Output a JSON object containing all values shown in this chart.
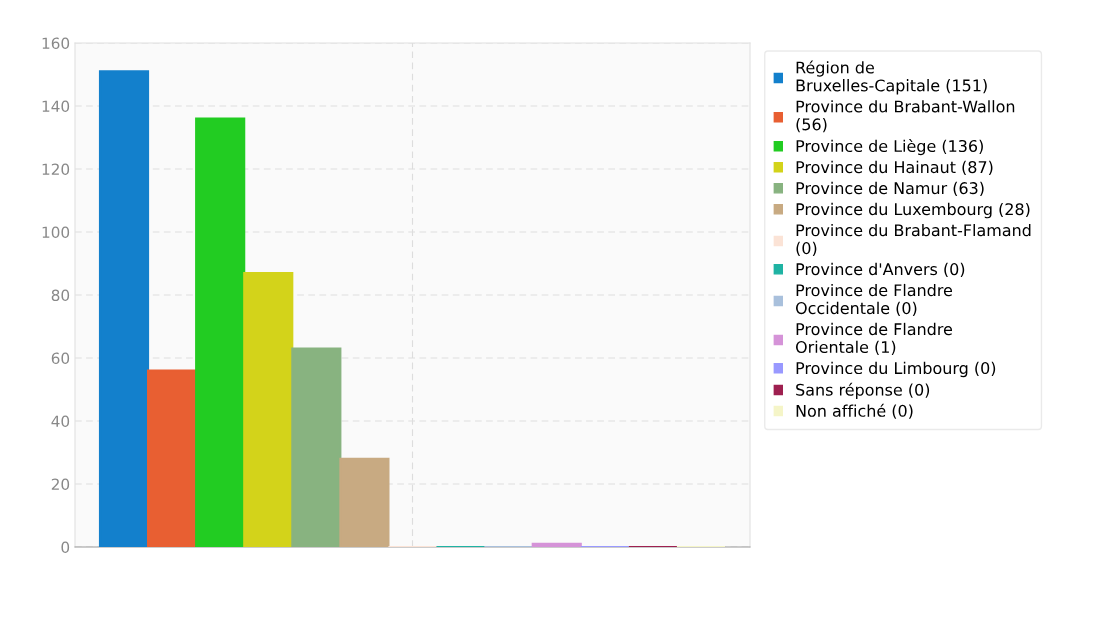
{
  "chart_data": {
    "type": "bar",
    "categories": [
      null
    ],
    "series": [
      {
        "name": "Région de Bruxelles-Capitale (151)",
        "color": "#1380cc",
        "values": [
          151
        ]
      },
      {
        "name": "Province du Brabant-Wallon (56)",
        "color": "#e85f32",
        "values": [
          56
        ]
      },
      {
        "name": "Province de Liège (136)",
        "color": "#22cc22",
        "values": [
          136
        ]
      },
      {
        "name": "Province du Hainaut (87)",
        "color": "#d3d31a",
        "values": [
          87
        ]
      },
      {
        "name": "Province de Namur (63)",
        "color": "#88b380",
        "values": [
          63
        ]
      },
      {
        "name": "Province du Luxembourg (28)",
        "color": "#c8aa82",
        "values": [
          28
        ]
      },
      {
        "name": "Province du Brabant-Flamand (0)",
        "color": "#fbe3d6",
        "values": [
          0
        ]
      },
      {
        "name": "Province d'Anvers (0)",
        "color": "#1fb3a3",
        "values": [
          0
        ]
      },
      {
        "name": "Province de Flandre Occidentale (0)",
        "color": "#a9c0dc",
        "values": [
          0
        ]
      },
      {
        "name": "Province de Flandre Orientale (1)",
        "color": "#d593d8",
        "values": [
          1
        ]
      },
      {
        "name": "Province du Limbourg (0)",
        "color": "#9999ff",
        "values": [
          0
        ]
      },
      {
        "name": "Sans réponse (0)",
        "color": "#9e2050",
        "values": [
          0
        ]
      },
      {
        "name": "Non affiché (0)",
        "color": "#f5f5c8",
        "values": [
          0
        ]
      }
    ],
    "ylim": [
      0,
      160
    ],
    "yticks": [
      0,
      20,
      40,
      60,
      80,
      100,
      120,
      140,
      160
    ],
    "grid": true,
    "legend": "right"
  }
}
